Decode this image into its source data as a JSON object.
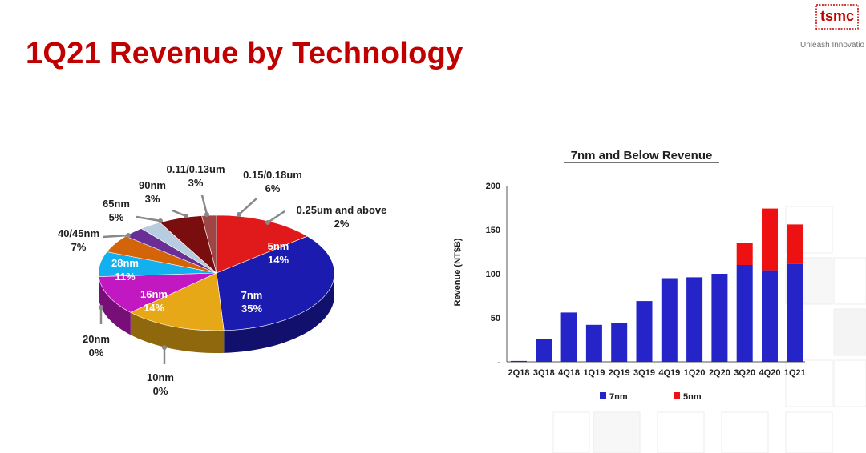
{
  "slide": {
    "title": "1Q21 Revenue by Technology",
    "logo_text": "tsmc",
    "tagline": "Unleash Innovatio",
    "brand_color": "#c00000"
  },
  "chart_data": [
    {
      "type": "pie",
      "slices": [
        {
          "label": "5nm",
          "value": "14%",
          "pct": 14,
          "color": "#e0191b"
        },
        {
          "label": "7nm",
          "value": "35%",
          "pct": 35,
          "color": "#1b1bb0"
        },
        {
          "label": "10nm",
          "value": "0%",
          "pct": 0,
          "color": "#888888"
        },
        {
          "label": "16nm",
          "value": "14%",
          "pct": 14,
          "color": "#e6a817"
        },
        {
          "label": "20nm",
          "value": "0%",
          "pct": 0,
          "color": "#888888"
        },
        {
          "label": "28nm",
          "value": "11%",
          "pct": 11,
          "color": "#c218c2"
        },
        {
          "label": "40/45nm",
          "value": "7%",
          "pct": 7,
          "color": "#12b0ee"
        },
        {
          "label": "65nm",
          "value": "5%",
          "pct": 5,
          "color": "#d4640a"
        },
        {
          "label": "90nm",
          "value": "3%",
          "pct": 3,
          "color": "#6a2f96"
        },
        {
          "label": "0.11/0.13um",
          "value": "3%",
          "pct": 3,
          "color": "#b8cce0"
        },
        {
          "label": "0.15/0.18um",
          "value": "6%",
          "pct": 6,
          "color": "#7a0d0d"
        },
        {
          "label": "0.25um and above",
          "value": "2%",
          "pct": 2,
          "color": "#a04545"
        }
      ]
    },
    {
      "type": "bar",
      "title": "7nm and Below Revenue",
      "ylabel": "Revenue (NT$B)",
      "ylim": [
        0,
        200
      ],
      "yticks": [
        "-",
        "50",
        "100",
        "150",
        "200"
      ],
      "categories": [
        "2Q18",
        "3Q18",
        "4Q18",
        "1Q19",
        "2Q19",
        "3Q19",
        "4Q19",
        "1Q20",
        "2Q20",
        "3Q20",
        "4Q20",
        "1Q21"
      ],
      "series": [
        {
          "name": "7nm",
          "color": "#2424c8",
          "values": [
            1,
            26,
            56,
            42,
            44,
            69,
            95,
            96,
            100,
            110,
            104,
            111
          ]
        },
        {
          "name": "5nm",
          "color": "#ee1111",
          "values": [
            0,
            0,
            0,
            0,
            0,
            0,
            0,
            0,
            0,
            25,
            70,
            45
          ]
        }
      ],
      "legend": "bottom"
    }
  ]
}
